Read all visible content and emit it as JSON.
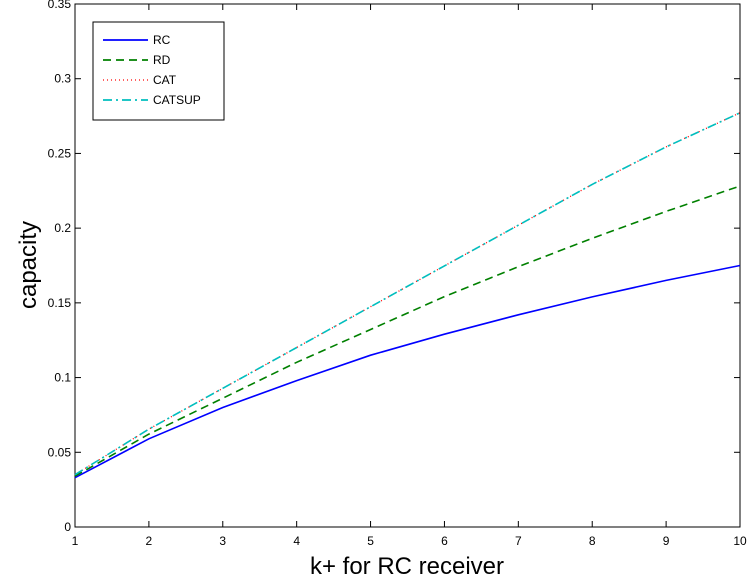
{
  "chart_data": {
    "type": "line",
    "title": "",
    "xlabel": "k+ for RC receiver",
    "ylabel": "capacity",
    "xlim": [
      1,
      10
    ],
    "ylim": [
      0,
      0.35
    ],
    "xticks": [
      1,
      2,
      3,
      4,
      5,
      6,
      7,
      8,
      9,
      10
    ],
    "yticks": [
      0,
      0.05,
      0.1,
      0.15,
      0.2,
      0.25,
      0.3,
      0.35
    ],
    "grid": false,
    "legend_position": "top-left",
    "x": [
      1,
      2,
      3,
      4,
      5,
      6,
      7,
      8,
      9,
      10
    ],
    "series": [
      {
        "name": "RC",
        "color": "#0000ff",
        "style": "solid",
        "values": [
          0.033,
          0.059,
          0.08,
          0.098,
          0.115,
          0.129,
          0.142,
          0.154,
          0.165,
          0.175
        ]
      },
      {
        "name": "RD",
        "color": "#008000",
        "style": "dashed",
        "values": [
          0.034,
          0.0622,
          0.0862,
          0.1102,
          0.1322,
          0.1542,
          0.1742,
          0.1932,
          0.2112,
          0.2282
        ]
      },
      {
        "name": "CAT",
        "color": "#ff0000",
        "style": "dotted",
        "values": [
          0.035,
          0.0655,
          0.0928,
          0.1201,
          0.1474,
          0.1747,
          0.202,
          0.2293,
          0.2544,
          0.2772
        ]
      },
      {
        "name": "CATSUP",
        "color": "#00bfbf",
        "style": "dashdot",
        "values": [
          0.035,
          0.0655,
          0.0928,
          0.1201,
          0.1474,
          0.1747,
          0.202,
          0.2293,
          0.2544,
          0.2772
        ]
      }
    ]
  }
}
